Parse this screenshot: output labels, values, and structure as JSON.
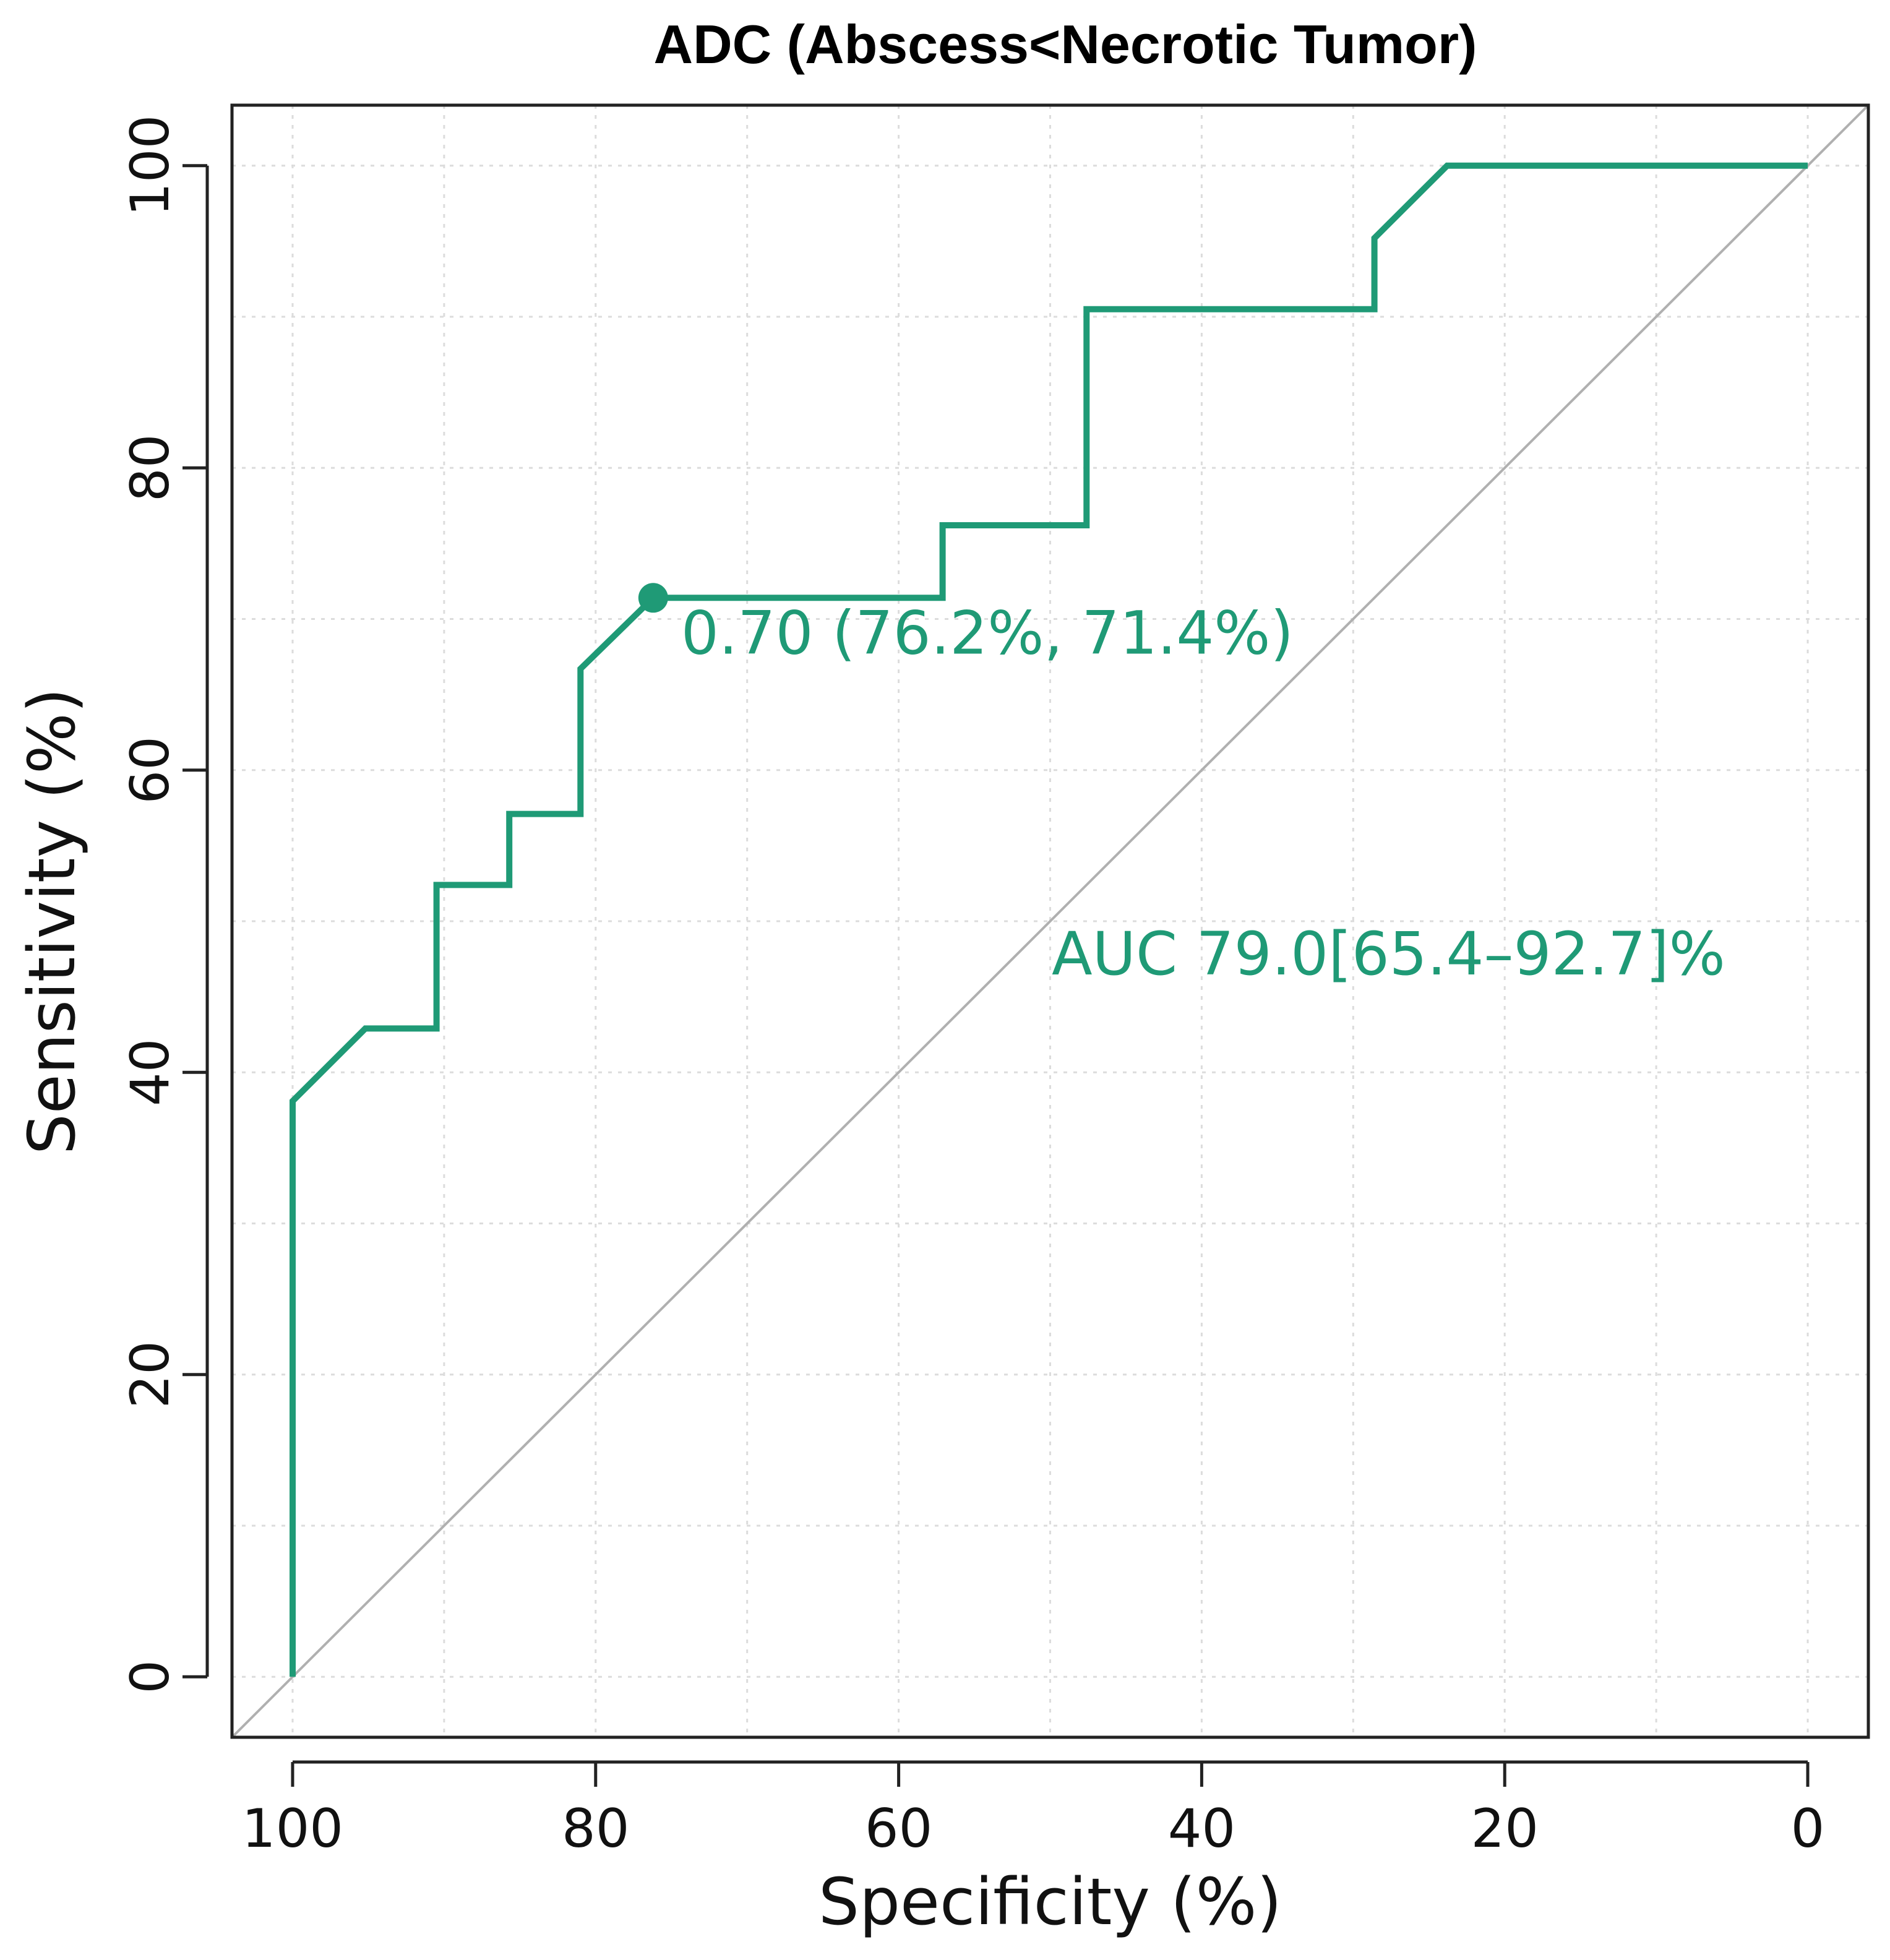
{
  "chart_data": {
    "type": "line",
    "title": "ADC (Abscess<Necrotic Tumor)",
    "xlabel": "Specificity (%)",
    "ylabel": "Sensitivity (%)",
    "xlim": [
      104,
      -4
    ],
    "ylim": [
      -4,
      104
    ],
    "x_reversed": true,
    "grid": true,
    "x_ticks": [
      100,
      80,
      60,
      40,
      20,
      0
    ],
    "y_ticks": [
      0,
      20,
      40,
      60,
      80,
      100
    ],
    "x_tick_labels": [
      "100",
      "80",
      "60",
      "40",
      "20",
      "0"
    ],
    "y_tick_labels": [
      "0",
      "20",
      "40",
      "60",
      "80",
      "100"
    ],
    "series": [
      {
        "name": "ROC",
        "color": "#1f9a76",
        "x": [
          100,
          100,
          95.2,
          90.5,
          90.5,
          85.7,
          85.7,
          81.0,
          81.0,
          76.2,
          57.1,
          57.1,
          47.6,
          47.6,
          28.6,
          28.6,
          23.8,
          0
        ],
        "y": [
          0,
          38.1,
          42.9,
          42.9,
          52.4,
          52.4,
          57.1,
          57.1,
          66.7,
          71.4,
          71.4,
          76.2,
          76.2,
          90.5,
          90.5,
          95.2,
          100,
          100
        ]
      }
    ],
    "reference_line": {
      "x": [
        100,
        0
      ],
      "y": [
        0,
        100
      ],
      "color": "#b0b0b0"
    },
    "threshold_point": {
      "x": 76.2,
      "y": 71.4,
      "label": "0.70 (76.2%, 71.4%)"
    },
    "auc_label": "AUC  79.0[65.4–92.7]%"
  }
}
